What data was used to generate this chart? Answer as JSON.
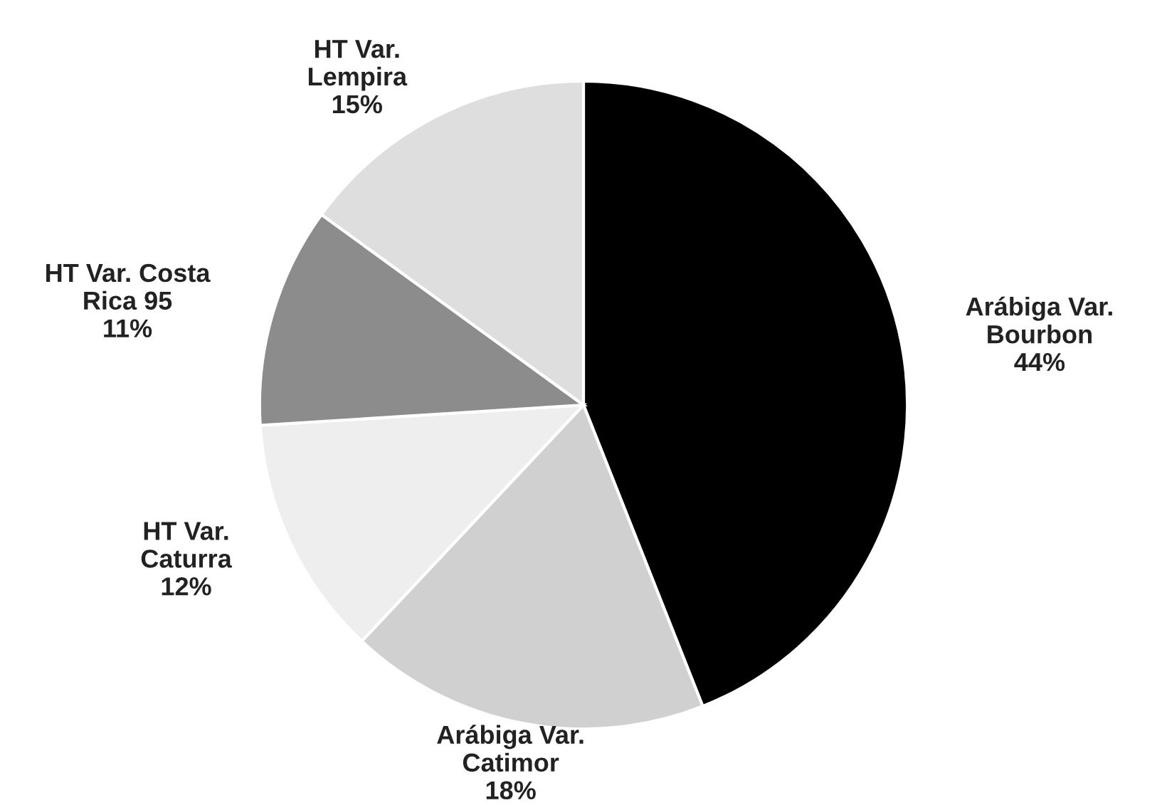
{
  "chart_data": {
    "type": "pie",
    "categories": [
      "Arábiga Var. Bourbon",
      "Arábiga Var. Catimor",
      "HT Var. Caturra",
      "HT Var. Costa Rica 95",
      "HT Var. Lempira"
    ],
    "values": [
      44,
      18,
      12,
      11,
      15
    ],
    "value_labels": [
      "44%",
      "18%",
      "12%",
      "11%",
      "15%"
    ],
    "colors": [
      "#000000",
      "#d0d0d0",
      "#eeeeee",
      "#8c8c8c",
      "#dedede"
    ],
    "legend": false
  }
}
